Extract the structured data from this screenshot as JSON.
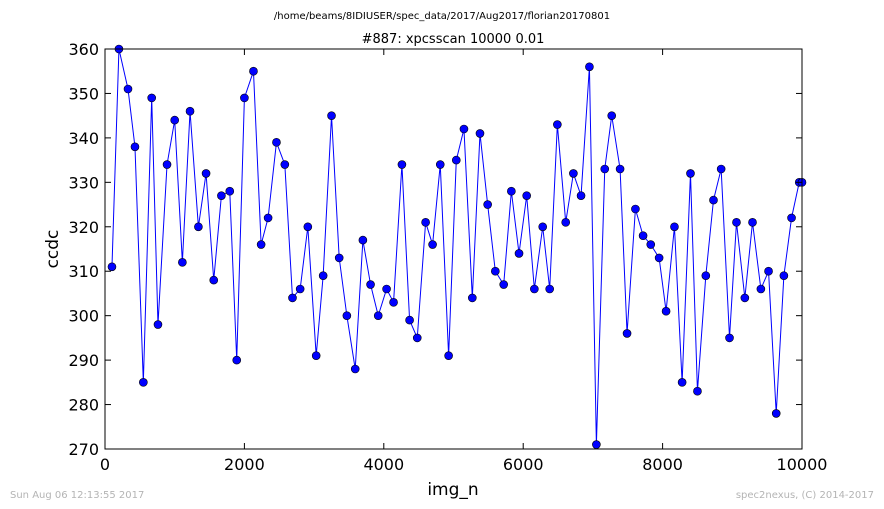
{
  "header": {
    "path": "/home/beams/8IDIUSER/spec_data/2017/Aug2017/florian20170801",
    "title": "#887: xpcsscan 10000 0.01"
  },
  "footer": {
    "timestamp": "Sun Aug 06 12:13:55 2017",
    "credit": "spec2nexus, (C) 2014-2017"
  },
  "chart_data": {
    "type": "line",
    "xlabel": "img_n",
    "ylabel": "ccdc",
    "xlim": [
      0,
      10000
    ],
    "ylim": [
      270,
      360
    ],
    "xticks": [
      0,
      2000,
      4000,
      6000,
      8000,
      10000
    ],
    "yticks": [
      270,
      280,
      290,
      300,
      310,
      320,
      330,
      340,
      350,
      360
    ],
    "grid": false,
    "marker": "circle",
    "color": "#0000ff",
    "series": [
      {
        "x": [
          100,
          200,
          330,
          430,
          550,
          670,
          760,
          890,
          1000,
          1110,
          1220,
          1340,
          1450,
          1560,
          1670,
          1790,
          1890,
          2000,
          2130,
          2240,
          2340,
          2460,
          2580,
          2690,
          2800,
          2910,
          3030,
          3130,
          3250,
          3360,
          3470,
          3590,
          3700,
          3810,
          3920,
          4040,
          4140,
          4260,
          4370,
          4480,
          4600,
          4700,
          4810,
          4930,
          5040,
          5150,
          5270,
          5380,
          5490,
          5600,
          5720,
          5830,
          5940,
          6050,
          6160,
          6280,
          6380,
          6490,
          6610,
          6720,
          6830,
          6950,
          7050,
          7170,
          7270,
          7390,
          7490,
          7610,
          7720,
          7830,
          7950,
          8050,
          8170,
          8280,
          8400,
          8500,
          8620,
          8730,
          8840,
          8960,
          9060,
          9180,
          9290,
          9410,
          9520,
          9630,
          9740,
          9850,
          9960,
          10000
        ],
        "y": [
          311,
          360,
          351,
          338,
          285,
          349,
          298,
          334,
          344,
          312,
          346,
          320,
          332,
          308,
          327,
          328,
          290,
          349,
          355,
          316,
          322,
          339,
          334,
          304,
          306,
          320,
          291,
          309,
          345,
          313,
          300,
          288,
          317,
          307,
          300,
          306,
          303,
          334,
          299,
          295,
          321,
          316,
          334,
          291,
          335,
          342,
          304,
          341,
          325,
          310,
          307,
          328,
          314,
          327,
          306,
          320,
          306,
          343,
          321,
          332,
          327,
          356,
          271,
          333,
          345,
          333,
          296,
          324,
          318,
          316,
          313,
          301,
          320,
          285,
          332,
          283,
          309,
          326,
          333,
          295,
          321,
          304,
          321,
          306,
          310,
          278,
          309,
          322,
          330,
          330
        ]
      }
    ]
  }
}
